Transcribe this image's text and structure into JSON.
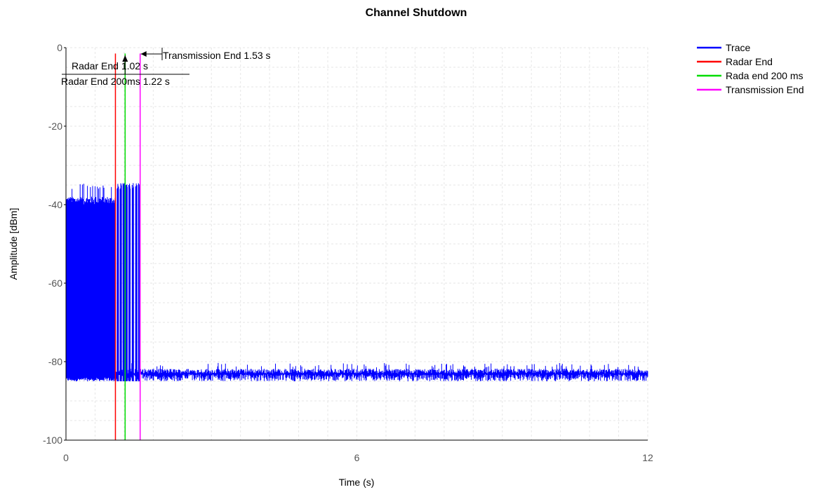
{
  "chart_data": {
    "type": "line",
    "title": "Channel Shutdown",
    "xlabel": "Time (s)",
    "ylabel": "Amplitude [dBm]",
    "xlim": [
      0,
      12
    ],
    "ylim": [
      -100,
      0
    ],
    "xticks": [
      0,
      6,
      12
    ],
    "yticks": [
      0,
      -20,
      -40,
      -60,
      -80,
      -100
    ],
    "grid": true,
    "legend_position": "top-right",
    "series": [
      {
        "name": "Trace",
        "color": "#0000ff",
        "segments": [
          {
            "x_start": 0.0,
            "x_end": 1.02,
            "y_low": -85,
            "y_high": -39,
            "y_peak": -34.5,
            "kind": "dense-burst"
          },
          {
            "x_start": 1.02,
            "x_end": 1.53,
            "y_low": -85,
            "y_high": -36,
            "kind": "sparse-burst"
          },
          {
            "x_start": 1.53,
            "x_end": 12.0,
            "y_low": -85,
            "y_high": -81.5,
            "kind": "noise-floor"
          }
        ]
      },
      {
        "name": "Radar End",
        "color": "#ff0000",
        "x": 1.02
      },
      {
        "name": "Rada end 200 ms",
        "color": "#00dd00",
        "x": 1.22
      },
      {
        "name": "Transmission End",
        "color": "#ff00ff",
        "x": 1.53
      }
    ],
    "annotations": [
      {
        "text": "Radar End 1.02 s",
        "x": 1.02
      },
      {
        "text": "Radar End 200ms 1.22 s",
        "x": 1.22
      },
      {
        "text": "Transmission End 1.53 s",
        "x": 1.53
      }
    ]
  }
}
